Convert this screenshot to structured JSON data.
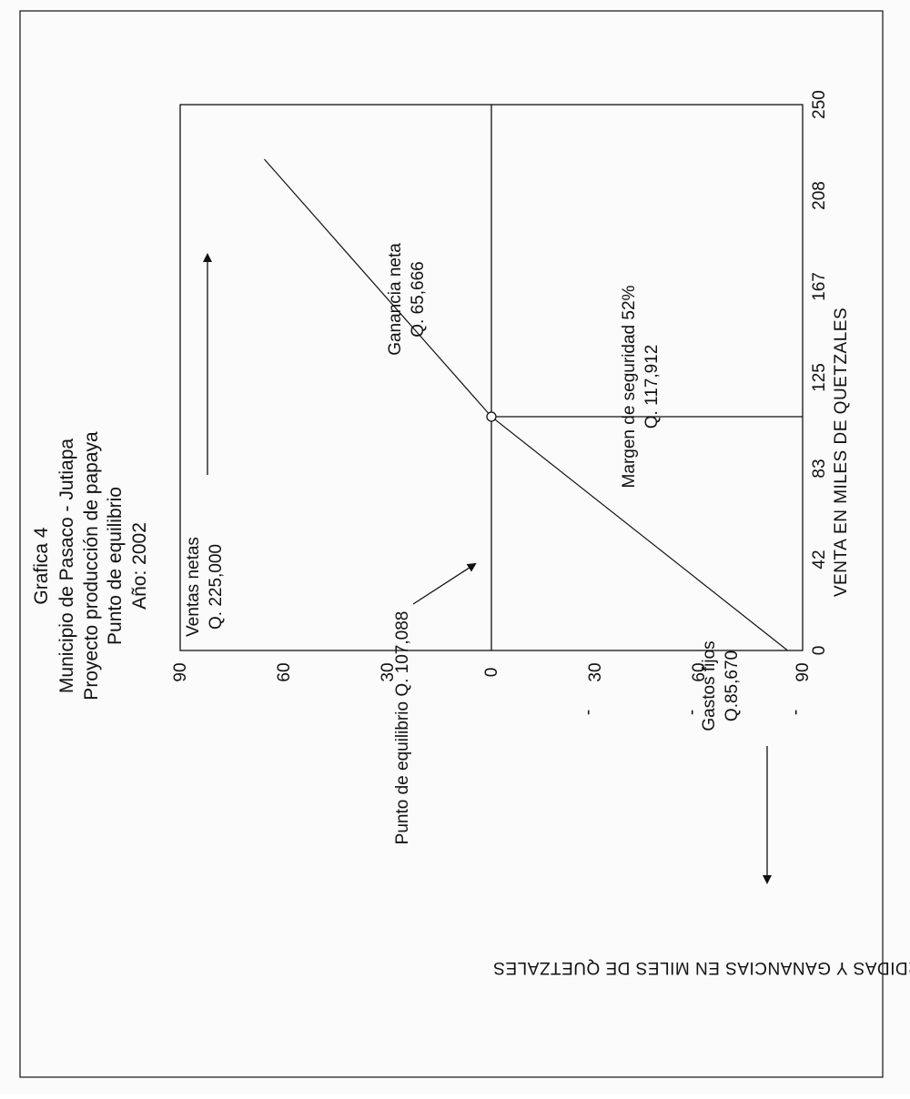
{
  "title_lines": [
    "Grafica 4",
    "Municipio de Pasaco - Jutiapa",
    "Proyecto producción de papaya",
    "Punto de equilibrio",
    "Año: 2002"
  ],
  "chart_data": {
    "type": "line",
    "xlabel": "VENTA EN MILES DE QUETZALES",
    "ylabel": "PERDIDAS Y GANANCIAS EN MILES DE QUETZALES",
    "x_ticks": [
      "0",
      "42",
      "83",
      "125",
      "167",
      "208",
      "250"
    ],
    "y_ticks": [
      "90",
      "60",
      "30",
      "0",
      "30",
      "60",
      "90"
    ],
    "xlim": [
      0,
      250
    ],
    "ylim": [
      -90,
      90
    ],
    "grid": false,
    "series": [
      {
        "x": [
          0,
          107.088,
          225
        ],
        "y": [
          -85.67,
          0,
          65.666
        ]
      }
    ],
    "break_even": {
      "x": 107.088,
      "y": 0
    },
    "annotations": {
      "ventas": [
        "Ventas netas",
        "Q. 225,000"
      ],
      "ganancia": [
        "Ganancia neta",
        "Q. 65,666"
      ],
      "margen": [
        "Margen de seguridad 52%",
        "Q. 117,912"
      ],
      "gastos": [
        "Gastos fijos",
        "Q.85,670"
      ],
      "equilibrio": "Punto de equilibrio Q. 107,088"
    },
    "dash_marks": [
      "-",
      "-",
      "-"
    ]
  }
}
